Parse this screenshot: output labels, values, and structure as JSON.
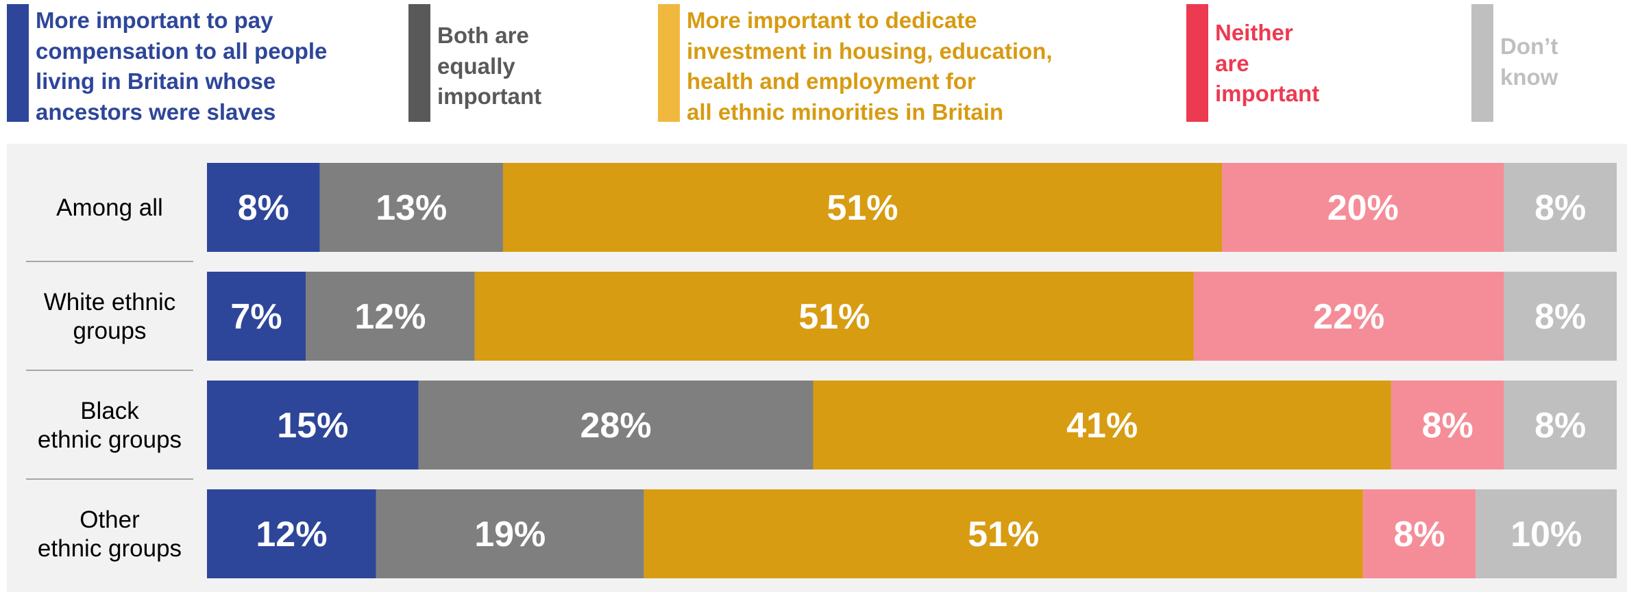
{
  "legend": [
    {
      "text": "More important to pay\ncompensation to all people\nliving in Britain whose\nancestors were slaves",
      "swatch": "#2e4699",
      "text_color": "#2e4699"
    },
    {
      "text": "Both are\nequally\nimportant",
      "swatch": "#595959",
      "text_color": "#595959"
    },
    {
      "text": "More important to dedicate\ninvestment in housing, education,\nhealth and employment for\nall ethnic minorities in Britain",
      "swatch": "#f0b93e",
      "text_color": "#d79b12"
    },
    {
      "text": "Neither\nare\nimportant",
      "swatch": "#ec3a50",
      "text_color": "#ec3a50"
    },
    {
      "text": "Don’t\nknow",
      "swatch": "#bfbfbf",
      "text_color": "#bfbfbf"
    }
  ],
  "chart_data": {
    "type": "bar",
    "orientation": "horizontal",
    "stacked": true,
    "categories": [
      "Among all",
      "White ethnic\ngroups",
      "Black\nethnic groups",
      "Other\nethnic groups"
    ],
    "series": [
      {
        "values": [
          8,
          7,
          15,
          12
        ],
        "labels": [
          "8%",
          "7%",
          "15%",
          "12%"
        ],
        "color": "#2e4699"
      },
      {
        "values": [
          13,
          12,
          28,
          19
        ],
        "labels": [
          "13%",
          "12%",
          "28%",
          "19%"
        ],
        "color": "#7f7f7f"
      },
      {
        "values": [
          51,
          51,
          41,
          51
        ],
        "labels": [
          "51%",
          "51%",
          "41%",
          "51%"
        ],
        "color": "#d89c12"
      },
      {
        "values": [
          20,
          22,
          8,
          8
        ],
        "labels": [
          "20%",
          "22%",
          "8%",
          "8%"
        ],
        "color": "#f58d98"
      },
      {
        "values": [
          8,
          8,
          8,
          10
        ],
        "labels": [
          "8%",
          "8%",
          "8%",
          "10%"
        ],
        "color": "#bfbfbf"
      }
    ],
    "xlim": [
      0,
      100
    ],
    "title": "",
    "xlabel": "",
    "ylabel": "",
    "grid": false,
    "legend_position": "top"
  }
}
